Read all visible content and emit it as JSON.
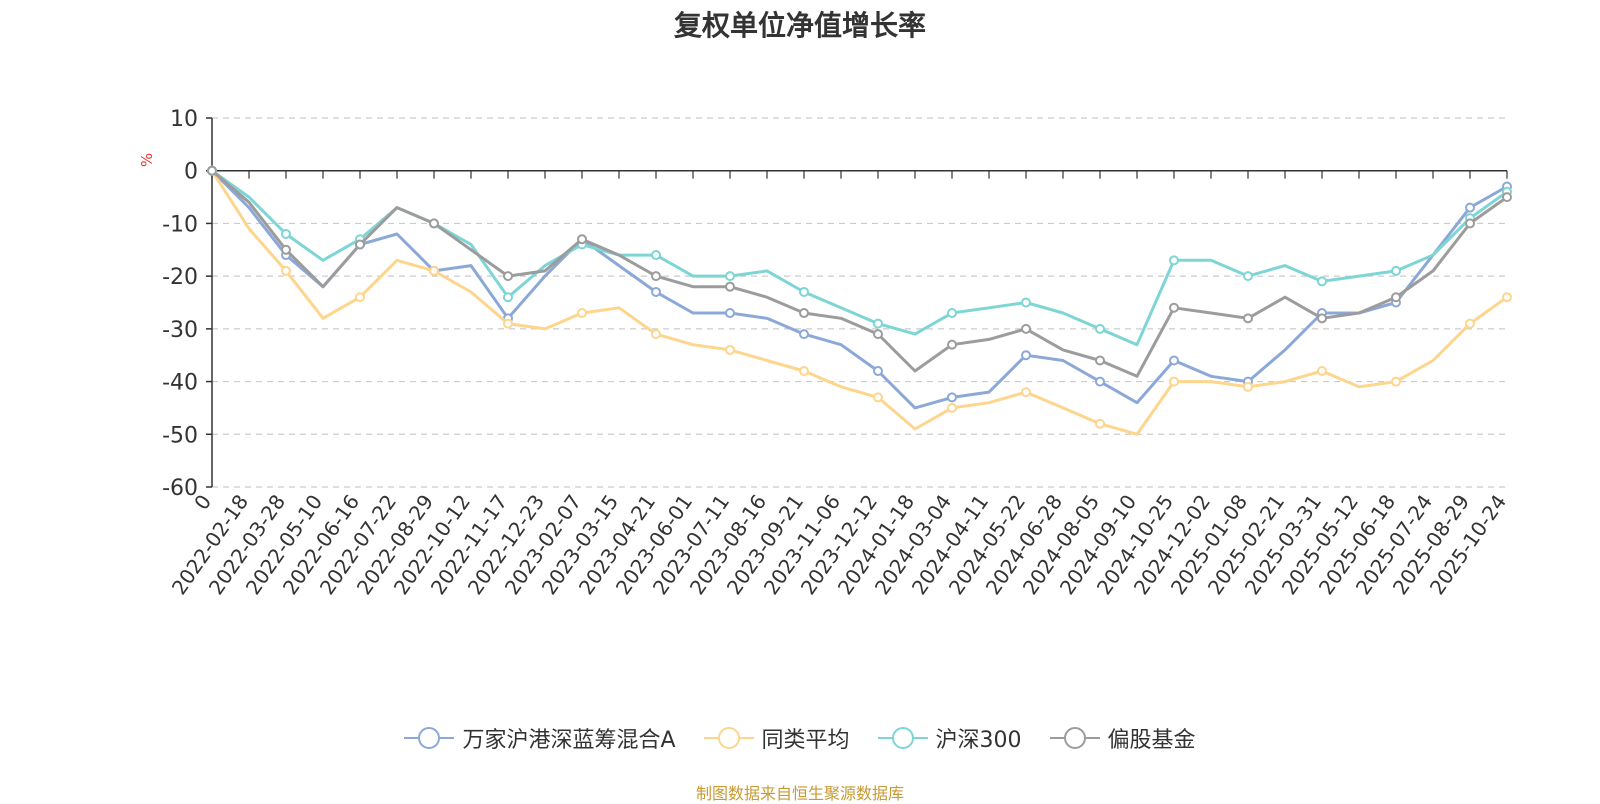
{
  "chart_data": {
    "type": "line",
    "title": "复权单位净值增长率",
    "ylabel": "%",
    "xlabel": "",
    "ylim": [
      -60,
      10
    ],
    "yticks": [
      10,
      0,
      -10,
      -20,
      -30,
      -40,
      -50,
      -60
    ],
    "grid": true,
    "legend_position": "bottom",
    "x": [
      "0",
      "2022-02-18",
      "2022-03-28",
      "2022-05-10",
      "2022-06-16",
      "2022-07-22",
      "2022-08-29",
      "2022-10-12",
      "2022-11-17",
      "2022-12-23",
      "2023-02-07",
      "2023-03-15",
      "2023-04-21",
      "2023-06-01",
      "2023-07-11",
      "2023-08-16",
      "2023-09-21",
      "2023-11-06",
      "2023-12-12",
      "2024-01-18",
      "2024-03-04",
      "2024-04-11",
      "2024-05-22",
      "2024-06-28",
      "2024-08-05",
      "2024-09-10",
      "2024-10-25",
      "2024-12-02",
      "2025-01-08",
      "2025-02-21",
      "2025-03-31",
      "2025-05-12",
      "2025-06-18",
      "2025-07-24",
      "2025-08-29",
      "2025-10-24"
    ],
    "series": [
      {
        "name": "万家沪港深蓝筹混合A",
        "color": "#8ba8d8",
        "values": [
          0,
          -7,
          -16,
          -22,
          -14,
          -12,
          -19,
          -18,
          -28,
          -20,
          -13,
          -18,
          -23,
          -27,
          -27,
          -28,
          -31,
          -33,
          -38,
          -45,
          -43,
          -42,
          -35,
          -36,
          -40,
          -44,
          -36,
          -39,
          -40,
          -34,
          -27,
          -27,
          -25,
          -16,
          -7,
          -3
        ]
      },
      {
        "name": "同类平均",
        "color": "#fdd58c",
        "values": [
          0,
          -11,
          -19,
          -28,
          -24,
          -17,
          -19,
          -23,
          -29,
          -30,
          -27,
          -26,
          -31,
          -33,
          -34,
          -36,
          -38,
          -41,
          -43,
          -49,
          -45,
          -44,
          -42,
          -45,
          -48,
          -50,
          -40,
          -40,
          -41,
          -40,
          -38,
          -41,
          -40,
          -36,
          -29,
          -24
        ]
      },
      {
        "name": "沪深300",
        "color": "#7dd5d5",
        "values": [
          0,
          -5,
          -12,
          -17,
          -13,
          -7,
          -10,
          -14,
          -24,
          -18,
          -14,
          -16,
          -16,
          -20,
          -20,
          -19,
          -23,
          -26,
          -29,
          -31,
          -27,
          -26,
          -25,
          -27,
          -30,
          -33,
          -17,
          -17,
          -20,
          -18,
          -21,
          -20,
          -19,
          -16,
          -9,
          -4
        ]
      },
      {
        "name": "偏股基金",
        "color": "#9c9c9c",
        "values": [
          0,
          -6,
          -15,
          -22,
          -14,
          -7,
          -10,
          -15,
          -20,
          -19,
          -13,
          -16,
          -20,
          -22,
          -22,
          -24,
          -27,
          -28,
          -31,
          -38,
          -33,
          -32,
          -30,
          -34,
          -36,
          -39,
          -26,
          -27,
          -28,
          -24,
          -28,
          -27,
          -24,
          -19,
          -10,
          -5
        ]
      }
    ],
    "source_note": "制图数据来自恒生聚源数据库"
  }
}
